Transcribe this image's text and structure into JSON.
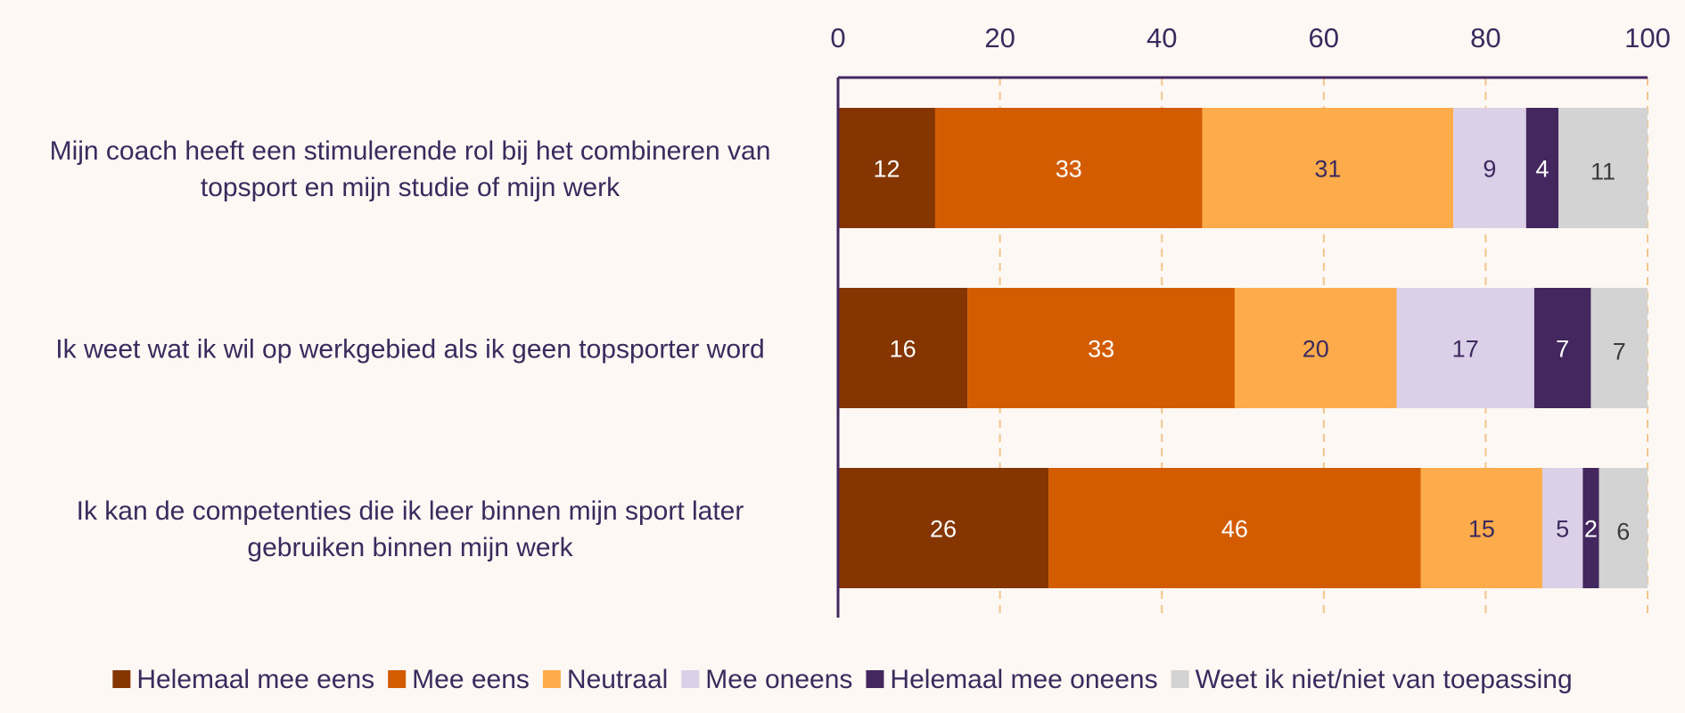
{
  "chart_data": {
    "type": "bar",
    "orientation": "horizontal",
    "stacked": true,
    "xlim": [
      0,
      100
    ],
    "xticks": [
      0,
      20,
      40,
      60,
      80,
      100
    ],
    "axis_position": "top",
    "grid": true,
    "legend_position": "bottom",
    "categories": [
      [
        "Mijn coach heeft een stimulerende rol bij het combineren van",
        "topsport en mijn studie of mijn werk"
      ],
      [
        "Ik weet wat ik wil op werkgebied als ik geen topsporter word"
      ],
      [
        "Ik kan de competenties die ik leer binnen mijn sport later",
        "gebruiken binnen mijn werk"
      ]
    ],
    "series": [
      {
        "name": "Helemaal mee eens",
        "color": "#853500",
        "label_color": "#ffffff",
        "values": [
          12,
          16,
          26
        ]
      },
      {
        "name": "Mee eens",
        "color": "#d45c00",
        "label_color": "#ffffff",
        "values": [
          33,
          33,
          46
        ]
      },
      {
        "name": "Neutraal",
        "color": "#fdab4b",
        "label_color": "#3b2a5e",
        "values": [
          31,
          20,
          15
        ]
      },
      {
        "name": "Mee oneens",
        "color": "#dcd0e9",
        "label_color": "#3b2a5e",
        "values": [
          9,
          17,
          5
        ]
      },
      {
        "name": "Helemaal mee oneens",
        "color": "#45275f",
        "label_color": "#ffffff",
        "values": [
          4,
          7,
          2
        ]
      },
      {
        "name": "Weet ik niet/niet van toepassing",
        "color": "#d3d3d3",
        "label_color": "#3b3b3b",
        "values": [
          11,
          7,
          6
        ]
      }
    ],
    "colors": {
      "axis": "#45275f",
      "grid": "#f3c48c",
      "text": "#3b2a5e"
    }
  }
}
